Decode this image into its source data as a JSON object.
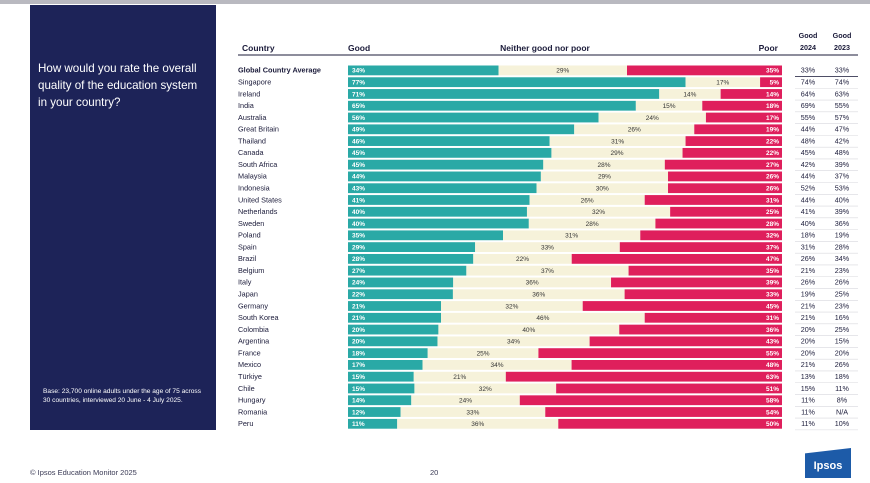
{
  "page": {
    "question": "How would you rate the overall quality of the education system in your country?",
    "base": "Base: 23,700 online adults under the age of 75 across 30 countries, interviewed 20 June - 4 July 2025.",
    "footer": "© Ipsos Education Monitor 2025",
    "page_number": "20",
    "logo": "Ipsos"
  },
  "colors": {
    "good": "#2aa9a6",
    "neither": "#f6f2da",
    "poor": "#df1f5c",
    "panel": "#1d2358"
  },
  "chart_data": {
    "type": "bar",
    "stacked": true,
    "orientation": "horizontal",
    "headers": {
      "country": "Country",
      "good": "Good",
      "neither": "Neither good nor poor",
      "poor": "Poor",
      "good2024": "Good 2024",
      "good2023": "Good 2023",
      "good2024_l1": "Good",
      "good2024_l2": "2024",
      "good2023_l1": "Good",
      "good2023_l2": "2023"
    },
    "categories": [
      "Global Country Average",
      "Singapore",
      "Ireland",
      "India",
      "Australia",
      "Great Britain",
      "Thailand",
      "Canada",
      "South Africa",
      "Malaysia",
      "Indonesia",
      "United States",
      "Netherlands",
      "Sweden",
      "Poland",
      "Spain",
      "Brazil",
      "Belgium",
      "Italy",
      "Japan",
      "Germany",
      "South Korea",
      "Colombia",
      "Argentina",
      "France",
      "Mexico",
      "Türkiye",
      "Chile",
      "Hungary",
      "Romania",
      "Peru"
    ],
    "series": [
      {
        "name": "Good",
        "values": [
          34,
          77,
          71,
          65,
          56,
          49,
          46,
          45,
          45,
          44,
          43,
          41,
          40,
          40,
          35,
          29,
          28,
          27,
          24,
          22,
          21,
          21,
          20,
          20,
          18,
          17,
          15,
          15,
          14,
          12,
          11
        ]
      },
      {
        "name": "Neither good nor poor",
        "values": [
          29,
          17,
          14,
          15,
          24,
          26,
          31,
          29,
          28,
          29,
          30,
          26,
          32,
          28,
          31,
          33,
          22,
          37,
          36,
          36,
          32,
          46,
          40,
          34,
          25,
          34,
          21,
          32,
          24,
          33,
          36
        ]
      },
      {
        "name": "Poor",
        "values": [
          35,
          5,
          14,
          18,
          17,
          19,
          22,
          22,
          27,
          26,
          26,
          31,
          25,
          28,
          32,
          37,
          47,
          35,
          39,
          33,
          45,
          31,
          36,
          43,
          55,
          48,
          63,
          51,
          58,
          54,
          50
        ]
      }
    ],
    "good_2024": [
      "33%",
      "74%",
      "64%",
      "69%",
      "55%",
      "44%",
      "48%",
      "45%",
      "42%",
      "44%",
      "52%",
      "44%",
      "41%",
      "40%",
      "18%",
      "31%",
      "26%",
      "21%",
      "26%",
      "19%",
      "21%",
      "21%",
      "20%",
      "20%",
      "20%",
      "21%",
      "13%",
      "15%",
      "11%",
      "11%",
      "11%"
    ],
    "good_2023": [
      "33%",
      "74%",
      "63%",
      "55%",
      "57%",
      "47%",
      "42%",
      "48%",
      "39%",
      "37%",
      "53%",
      "40%",
      "39%",
      "36%",
      "19%",
      "28%",
      "34%",
      "23%",
      "26%",
      "25%",
      "23%",
      "16%",
      "25%",
      "15%",
      "20%",
      "26%",
      "18%",
      "11%",
      "8%",
      "N/A",
      "10%"
    ],
    "xlim": [
      0,
      100
    ]
  }
}
